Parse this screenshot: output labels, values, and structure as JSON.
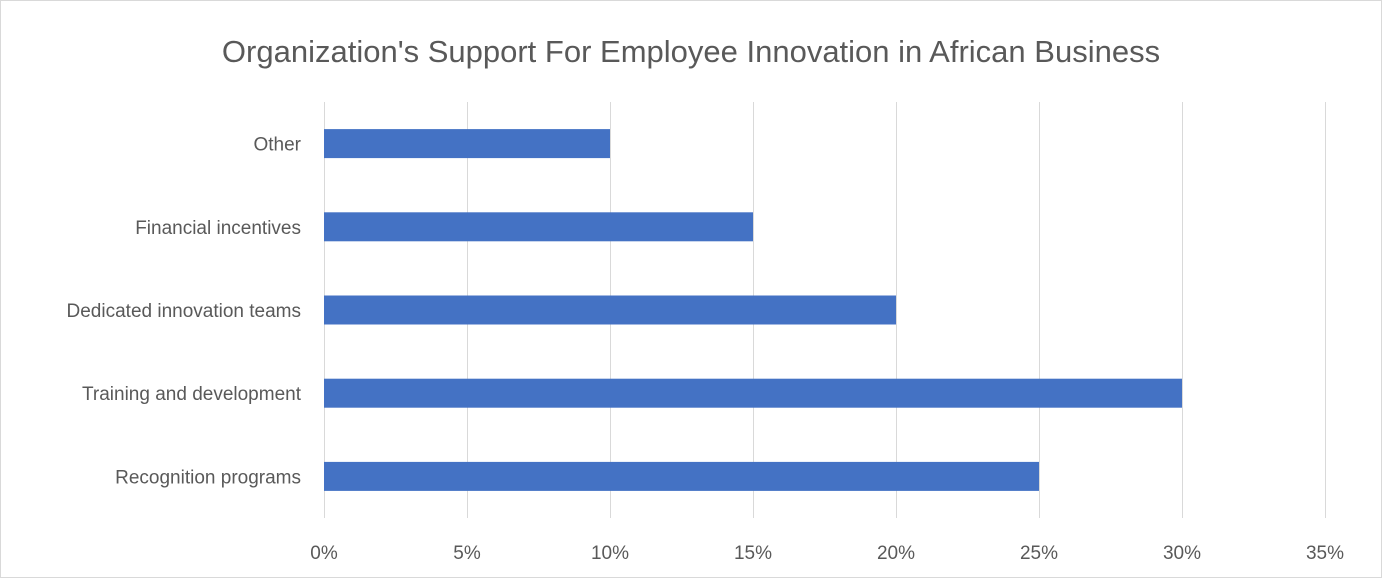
{
  "chart_data": {
    "type": "bar",
    "orientation": "horizontal",
    "title": "Organization's Support For Employee Innovation in African Business",
    "categories": [
      "Recognition programs",
      "Training and development",
      "Dedicated innovation teams",
      "Financial incentives",
      "Other"
    ],
    "values": [
      25,
      30,
      20,
      15,
      10
    ],
    "xlabel": "",
    "ylabel": "",
    "xlim": [
      0,
      35
    ],
    "x_ticks": [
      0,
      5,
      10,
      15,
      20,
      25,
      30,
      35
    ],
    "x_tick_labels": [
      "0%",
      "5%",
      "10%",
      "15%",
      "20%",
      "25%",
      "30%",
      "35%"
    ],
    "grid": true,
    "legend": "none",
    "colors": {
      "bar": "#4472c4",
      "grid": "#d9d9d9",
      "text": "#595959",
      "border": "#d9d9d9"
    }
  }
}
